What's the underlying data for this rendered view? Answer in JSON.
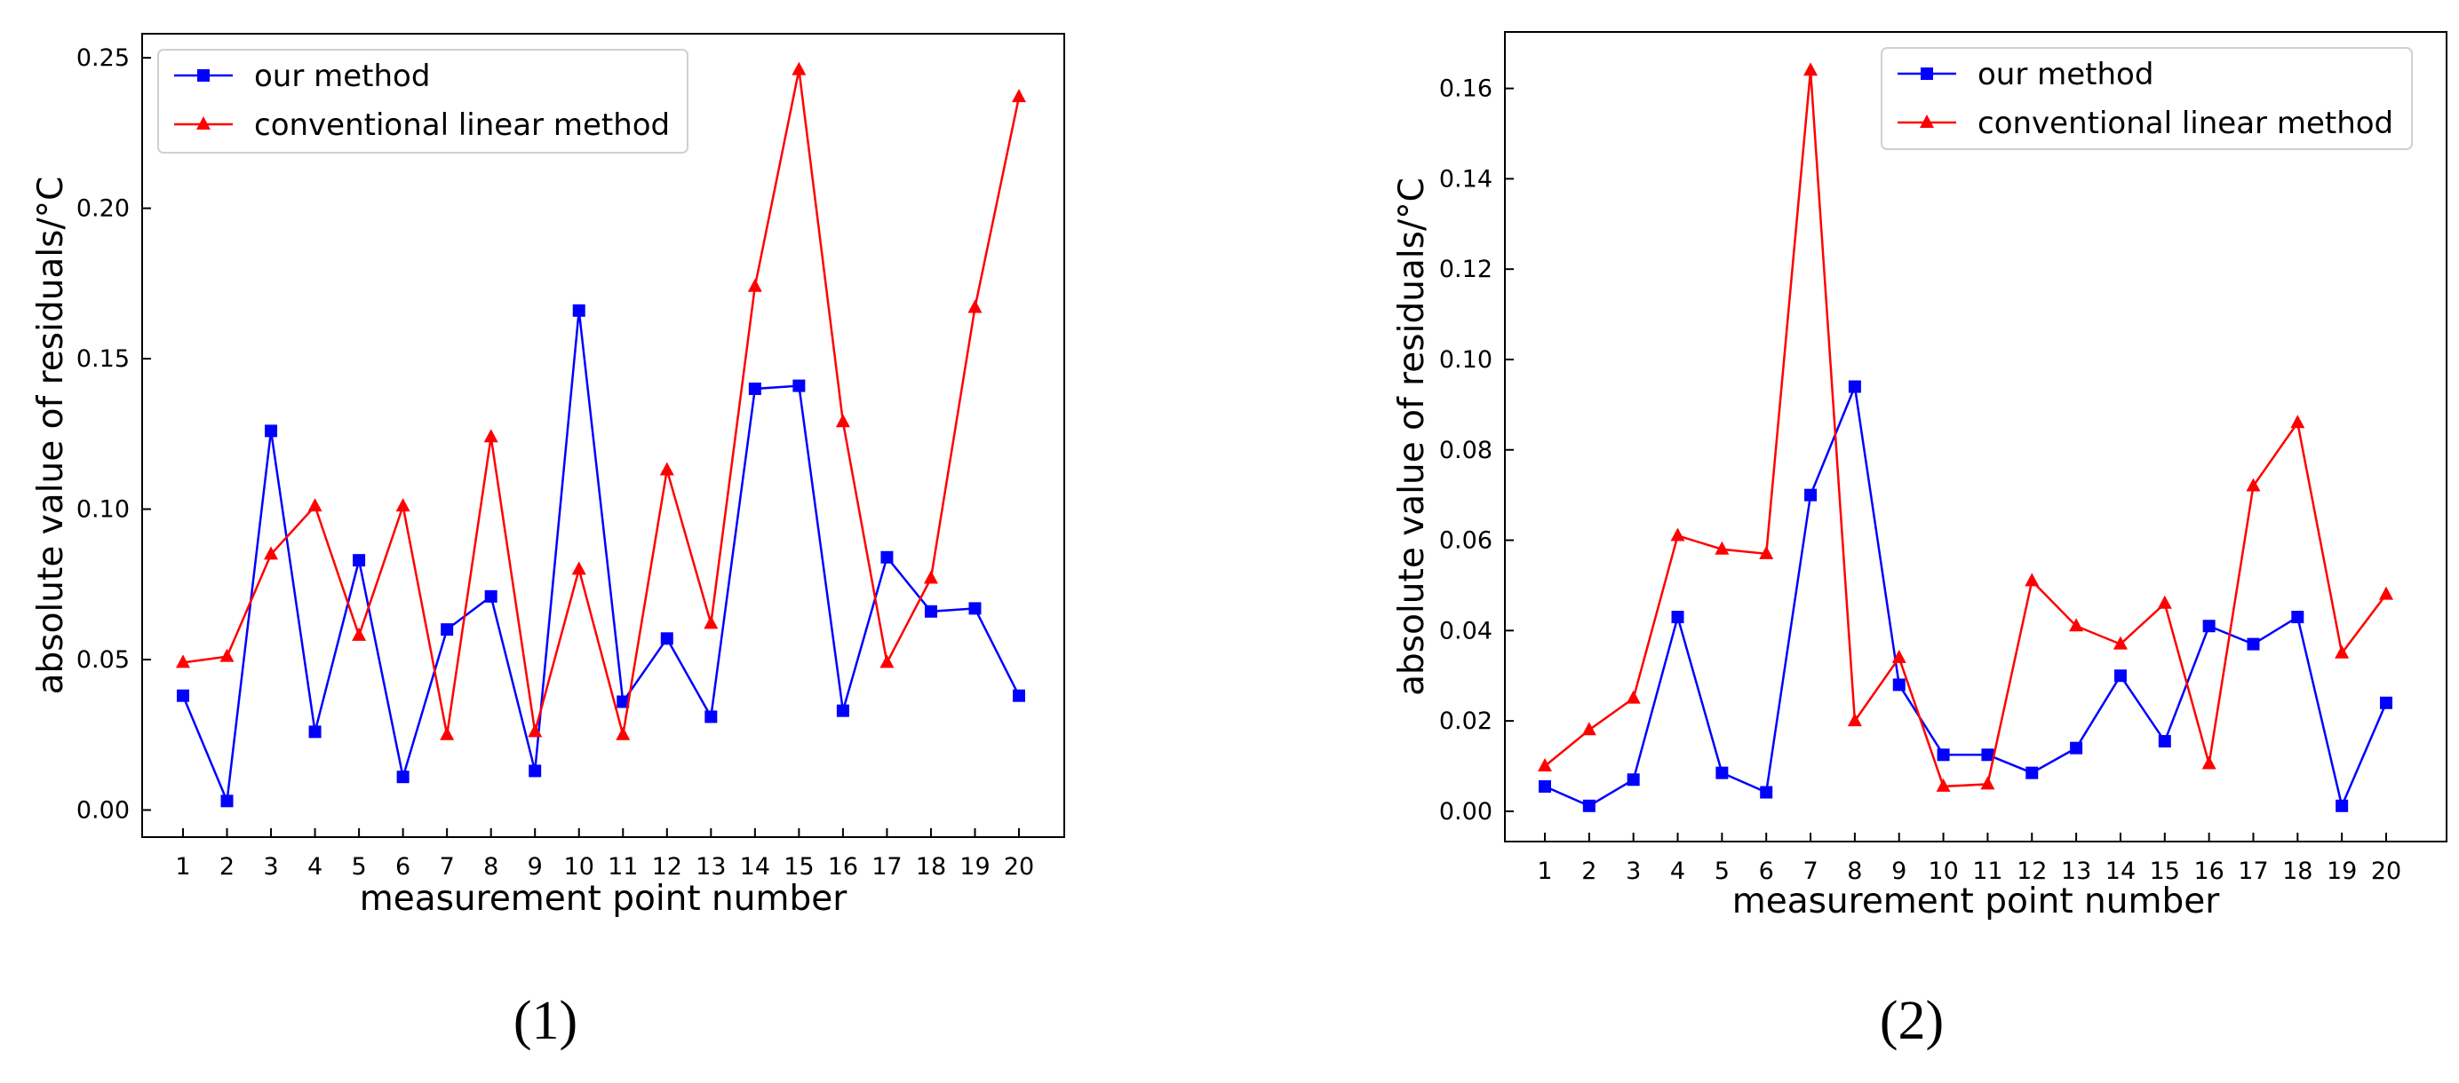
{
  "chart_data": [
    {
      "type": "line",
      "caption": "(1)",
      "xlabel": "measurement point number",
      "ylabel": "absolute value of residuals/°C",
      "categories": [
        "1",
        "2",
        "3",
        "4",
        "5",
        "6",
        "7",
        "8",
        "9",
        "10",
        "11",
        "12",
        "13",
        "14",
        "15",
        "16",
        "17",
        "18",
        "19",
        "20"
      ],
      "ylim": [
        -0.009,
        0.258
      ],
      "yticks": [
        0.0,
        0.05,
        0.1,
        0.15,
        0.2,
        0.25
      ],
      "ytick_labels": [
        "0.00",
        "0.05",
        "0.10",
        "0.15",
        "0.20",
        "0.25"
      ],
      "legend_position": "top-left",
      "series": [
        {
          "name": "our method",
          "color": "#0000ff",
          "marker": "square",
          "values": [
            0.038,
            0.003,
            0.126,
            0.026,
            0.083,
            0.011,
            0.06,
            0.071,
            0.013,
            0.166,
            0.036,
            0.057,
            0.031,
            0.14,
            0.141,
            0.033,
            0.084,
            0.066,
            0.067,
            0.038
          ]
        },
        {
          "name": "conventional linear method",
          "color": "#ff0000",
          "marker": "triangle",
          "values": [
            0.049,
            0.051,
            0.085,
            0.101,
            0.058,
            0.101,
            0.025,
            0.124,
            0.026,
            0.08,
            0.025,
            0.113,
            0.062,
            0.174,
            0.246,
            0.129,
            0.049,
            0.077,
            0.167,
            0.237
          ]
        }
      ]
    },
    {
      "type": "line",
      "caption": "(2)",
      "xlabel": "measurement point number",
      "ylabel": "absolute value of residuals/°C",
      "categories": [
        "1",
        "2",
        "3",
        "4",
        "5",
        "6",
        "7",
        "8",
        "9",
        "10",
        "11",
        "12",
        "13",
        "14",
        "15",
        "16",
        "17",
        "18",
        "19",
        "20"
      ],
      "ylim": [
        -0.0067,
        0.1725
      ],
      "yticks": [
        0.0,
        0.02,
        0.04,
        0.06,
        0.08,
        0.1,
        0.12,
        0.14,
        0.16
      ],
      "ytick_labels": [
        "0.00",
        "0.02",
        "0.04",
        "0.06",
        "0.08",
        "0.10",
        "0.12",
        "0.14",
        "0.16"
      ],
      "legend_position": "top-right",
      "series": [
        {
          "name": "our method",
          "color": "#0000ff",
          "marker": "square",
          "values": [
            0.0055,
            0.0012,
            0.007,
            0.043,
            0.0085,
            0.0042,
            0.07,
            0.094,
            0.028,
            0.0125,
            0.0125,
            0.0085,
            0.014,
            0.03,
            0.0155,
            0.041,
            0.037,
            0.043,
            0.0012,
            0.024
          ]
        },
        {
          "name": "conventional linear method",
          "color": "#ff0000",
          "marker": "triangle",
          "values": [
            0.01,
            0.018,
            0.025,
            0.061,
            0.058,
            0.057,
            0.164,
            0.02,
            0.034,
            0.0055,
            0.006,
            0.051,
            0.041,
            0.037,
            0.046,
            0.0105,
            0.072,
            0.086,
            0.035,
            0.048
          ]
        }
      ]
    }
  ]
}
